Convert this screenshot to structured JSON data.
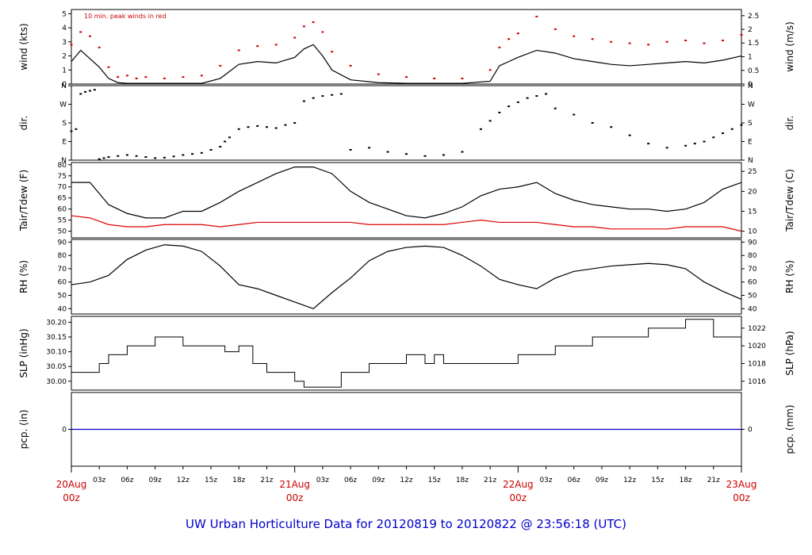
{
  "title": "UW Urban Horticulture Data for 20120819  to  20120822 @ 23:56:18  (UTC)",
  "chart_data": {
    "type": "line",
    "x_axis": {
      "start": "20120820 00z",
      "end": "20120823 00z",
      "date_ticks": [
        {
          "day": "20Aug",
          "hour": "00z",
          "offset_h": 0
        },
        {
          "day": "21Aug",
          "hour": "00z",
          "offset_h": 24
        },
        {
          "day": "22Aug",
          "hour": "00z",
          "offset_h": 48
        },
        {
          "day": "23Aug",
          "hour": "00z",
          "offset_h": 72
        }
      ],
      "hour_ticks": [
        "03z",
        "06z",
        "09z",
        "12z",
        "15z",
        "18z",
        "21z"
      ]
    },
    "panels": [
      {
        "name": "wind",
        "ylabel_left": "wind (kts)",
        "ylabel_right": "wind (m/s)",
        "note": "10 min. peak winds in red",
        "ylim": [
          0,
          5.3
        ],
        "ticks_left": [
          "0",
          "1",
          "2",
          "3",
          "4",
          "5"
        ],
        "ticks_left_values": [
          0,
          1,
          2,
          3,
          4,
          5
        ],
        "ticks_right": [
          "0",
          "0.5",
          "1",
          "1.5",
          "2",
          "2.5"
        ],
        "ticks_right_values": [
          0,
          0.97,
          1.94,
          2.92,
          3.89,
          4.86
        ],
        "series": [
          {
            "color": "#000000",
            "style": "line",
            "x": [
              0,
              1,
              2,
              3,
              4,
              5,
              6,
              7,
              8,
              10,
              12,
              14,
              16,
              18,
              20,
              22,
              24,
              25,
              26,
              27,
              28,
              30,
              33,
              36,
              39,
              42,
              45,
              46,
              47,
              48,
              50,
              52,
              54,
              56,
              58,
              60,
              62,
              64,
              66,
              68,
              70,
              72
            ],
            "y": [
              1.6,
              2.4,
              1.8,
              1.2,
              0.4,
              0.1,
              0.05,
              0.05,
              0.05,
              0.05,
              0.05,
              0.05,
              0.4,
              1.4,
              1.6,
              1.5,
              1.9,
              2.5,
              2.8,
              2.0,
              1.0,
              0.3,
              0.1,
              0.05,
              0.05,
              0.05,
              0.2,
              1.3,
              1.6,
              1.9,
              2.4,
              2.2,
              1.8,
              1.6,
              1.4,
              1.3,
              1.4,
              1.5,
              1.6,
              1.5,
              1.7,
              2.0
            ]
          },
          {
            "color": "#cc0000",
            "style": "points",
            "x": [
              0,
              1,
              2,
              3,
              4,
              5,
              6,
              7,
              8,
              10,
              12,
              14,
              16,
              18,
              20,
              22,
              24,
              25,
              26,
              27,
              28,
              30,
              33,
              36,
              39,
              42,
              45,
              46,
              47,
              48,
              50,
              52,
              54,
              56,
              58,
              60,
              62,
              64,
              66,
              68,
              70,
              72
            ],
            "y": [
              2.8,
              3.7,
              3.4,
              2.6,
              1.2,
              0.5,
              0.6,
              0.4,
              0.5,
              0.4,
              0.5,
              0.6,
              1.3,
              2.4,
              2.7,
              2.8,
              3.3,
              4.1,
              4.4,
              3.7,
              2.3,
              1.3,
              0.7,
              0.5,
              0.4,
              0.4,
              1.0,
              2.6,
              3.2,
              3.6,
              4.8,
              3.9,
              3.4,
              3.2,
              3.0,
              2.9,
              2.8,
              3.0,
              3.1,
              2.9,
              3.1,
              3.5
            ]
          }
        ]
      },
      {
        "name": "direction",
        "ylabel_left": "dir.",
        "ylabel_right": "dir.",
        "ylim": [
          0,
          360
        ],
        "ticks_left": [
          "N",
          "E",
          "S",
          "W",
          "N"
        ],
        "ticks_left_values": [
          0,
          90,
          180,
          270,
          360
        ],
        "ticks_right": [
          "N",
          "E",
          "S",
          "W",
          "N"
        ],
        "ticks_right_values": [
          0,
          90,
          180,
          270,
          360
        ],
        "series": [
          {
            "color": "#000000",
            "style": "points",
            "x": [
              0,
              0.5,
              1,
              1.5,
              2,
              2.5,
              3,
              3.5,
              4,
              5,
              6,
              7,
              8,
              9,
              10,
              11,
              12,
              13,
              14,
              15,
              16,
              16.5,
              17,
              18,
              19,
              20,
              21,
              22,
              23,
              24,
              25,
              26,
              27,
              28,
              29,
              30,
              32,
              34,
              36,
              38,
              40,
              42,
              44,
              45,
              46,
              47,
              48,
              49,
              50,
              51,
              52,
              54,
              56,
              58,
              60,
              62,
              64,
              66,
              67,
              68,
              69,
              70,
              71,
              72
            ],
            "y": [
              140,
              150,
              320,
              330,
              335,
              340,
              5,
              10,
              15,
              20,
              25,
              20,
              15,
              10,
              12,
              18,
              25,
              30,
              35,
              50,
              65,
              90,
              110,
              150,
              160,
              165,
              160,
              155,
              170,
              180,
              285,
              300,
              310,
              315,
              320,
              50,
              60,
              40,
              30,
              20,
              25,
              40,
              150,
              190,
              230,
              260,
              280,
              300,
              310,
              320,
              250,
              220,
              180,
              160,
              120,
              80,
              60,
              70,
              80,
              90,
              110,
              130,
              150,
              170
            ]
          }
        ]
      },
      {
        "name": "temperature",
        "ylabel_left": "Tair/Tdew (F)",
        "ylabel_right": "Tair/Tdew (C)",
        "ylim": [
          47,
          81
        ],
        "ticks_left": [
          "50",
          "55",
          "60",
          "65",
          "70",
          "75",
          "80"
        ],
        "ticks_left_values": [
          50,
          55,
          60,
          65,
          70,
          75,
          80
        ],
        "ticks_right": [
          "10",
          "15",
          "20",
          "25"
        ],
        "ticks_right_values": [
          50,
          59,
          68,
          77
        ],
        "series": [
          {
            "color": "#000000",
            "style": "line",
            "x": [
              0,
              2,
              4,
              6,
              8,
              10,
              12,
              14,
              16,
              18,
              20,
              22,
              24,
              26,
              28,
              30,
              32,
              34,
              36,
              38,
              40,
              42,
              44,
              46,
              48,
              50,
              52,
              54,
              56,
              58,
              60,
              62,
              64,
              66,
              68,
              70,
              72
            ],
            "y": [
              72,
              72,
              62,
              58,
              56,
              56,
              59,
              59,
              63,
              68,
              72,
              76,
              79,
              79,
              76,
              68,
              63,
              60,
              57,
              56,
              58,
              61,
              66,
              69,
              70,
              72,
              67,
              64,
              62,
              61,
              60,
              60,
              59,
              60,
              63,
              69,
              72
            ]
          },
          {
            "color": "#dd0000",
            "style": "line",
            "x": [
              0,
              2,
              4,
              6,
              8,
              10,
              12,
              14,
              16,
              18,
              20,
              22,
              24,
              26,
              28,
              30,
              32,
              34,
              36,
              38,
              40,
              42,
              44,
              46,
              48,
              50,
              52,
              54,
              56,
              58,
              60,
              62,
              64,
              66,
              68,
              70,
              72
            ],
            "y": [
              57,
              56,
              53,
              52,
              52,
              53,
              53,
              53,
              52,
              53,
              54,
              54,
              54,
              54,
              54,
              54,
              53,
              53,
              53,
              53,
              53,
              54,
              55,
              54,
              54,
              54,
              53,
              52,
              52,
              51,
              51,
              51,
              51,
              52,
              52,
              52,
              50
            ]
          }
        ]
      },
      {
        "name": "rh",
        "ylabel_left": "RH (%)",
        "ylabel_right": "RH (%)",
        "ylim": [
          36,
          92
        ],
        "ticks_left": [
          "40",
          "50",
          "60",
          "70",
          "80",
          "90"
        ],
        "ticks_left_values": [
          40,
          50,
          60,
          70,
          80,
          90
        ],
        "ticks_right": [
          "40",
          "50",
          "60",
          "70",
          "80",
          "90"
        ],
        "ticks_right_values": [
          40,
          50,
          60,
          70,
          80,
          90
        ],
        "series": [
          {
            "color": "#000000",
            "style": "line",
            "x": [
              0,
              2,
              4,
              6,
              8,
              10,
              12,
              14,
              16,
              18,
              20,
              22,
              24,
              26,
              28,
              30,
              32,
              34,
              36,
              38,
              40,
              42,
              44,
              46,
              48,
              50,
              52,
              54,
              56,
              58,
              60,
              62,
              64,
              66,
              68,
              70,
              72
            ],
            "y": [
              58,
              60,
              65,
              77,
              84,
              88,
              87,
              83,
              72,
              58,
              55,
              50,
              45,
              40,
              52,
              63,
              76,
              83,
              86,
              87,
              86,
              80,
              72,
              62,
              58,
              55,
              63,
              68,
              70,
              72,
              73,
              74,
              73,
              70,
              60,
              53,
              47
            ]
          }
        ]
      },
      {
        "name": "slp",
        "ylabel_left": "SLP (inHg)",
        "ylabel_right": "SLP (hPa)",
        "ylim": [
          29.97,
          30.22
        ],
        "ticks_left": [
          "30.00",
          "30.05",
          "30.10",
          "30.15",
          "30.20"
        ],
        "ticks_left_values": [
          30.0,
          30.05,
          30.1,
          30.15,
          30.2
        ],
        "ticks_right": [
          "1016",
          "1018",
          "1020",
          "1022"
        ],
        "ticks_right_values": [
          30.0,
          30.06,
          30.12,
          30.18
        ],
        "series": [
          {
            "color": "#000000",
            "style": "step",
            "x": [
              0,
              2,
              3,
              4,
              6,
              9,
              12,
              15,
              16.5,
              18,
              19.5,
              21,
              24,
              25,
              27,
              29,
              32,
              36,
              38,
              39,
              40,
              41,
              42,
              44,
              45,
              46,
              48,
              50,
              52,
              54,
              56,
              60,
              62,
              64,
              66,
              67,
              69,
              72
            ],
            "y": [
              30.03,
              30.03,
              30.06,
              30.09,
              30.12,
              30.15,
              30.12,
              30.12,
              30.1,
              30.12,
              30.06,
              30.03,
              30.0,
              29.98,
              29.98,
              30.03,
              30.06,
              30.09,
              30.06,
              30.09,
              30.06,
              30.06,
              30.06,
              30.06,
              30.06,
              30.06,
              30.09,
              30.09,
              30.12,
              30.12,
              30.15,
              30.15,
              30.18,
              30.18,
              30.21,
              30.21,
              30.15,
              30.12
            ]
          }
        ]
      },
      {
        "name": "precip",
        "ylabel_left": "pcp. (in)",
        "ylabel_right": "pcp. (mm)",
        "ylim": [
          -1,
          1
        ],
        "ticks_left": [
          "0"
        ],
        "ticks_left_values": [
          0
        ],
        "ticks_right": [
          "0"
        ],
        "ticks_right_values": [
          0
        ],
        "series": [
          {
            "color": "#0000cc",
            "style": "line",
            "x": [
              0,
              72
            ],
            "y": [
              0,
              0
            ]
          }
        ]
      }
    ]
  }
}
